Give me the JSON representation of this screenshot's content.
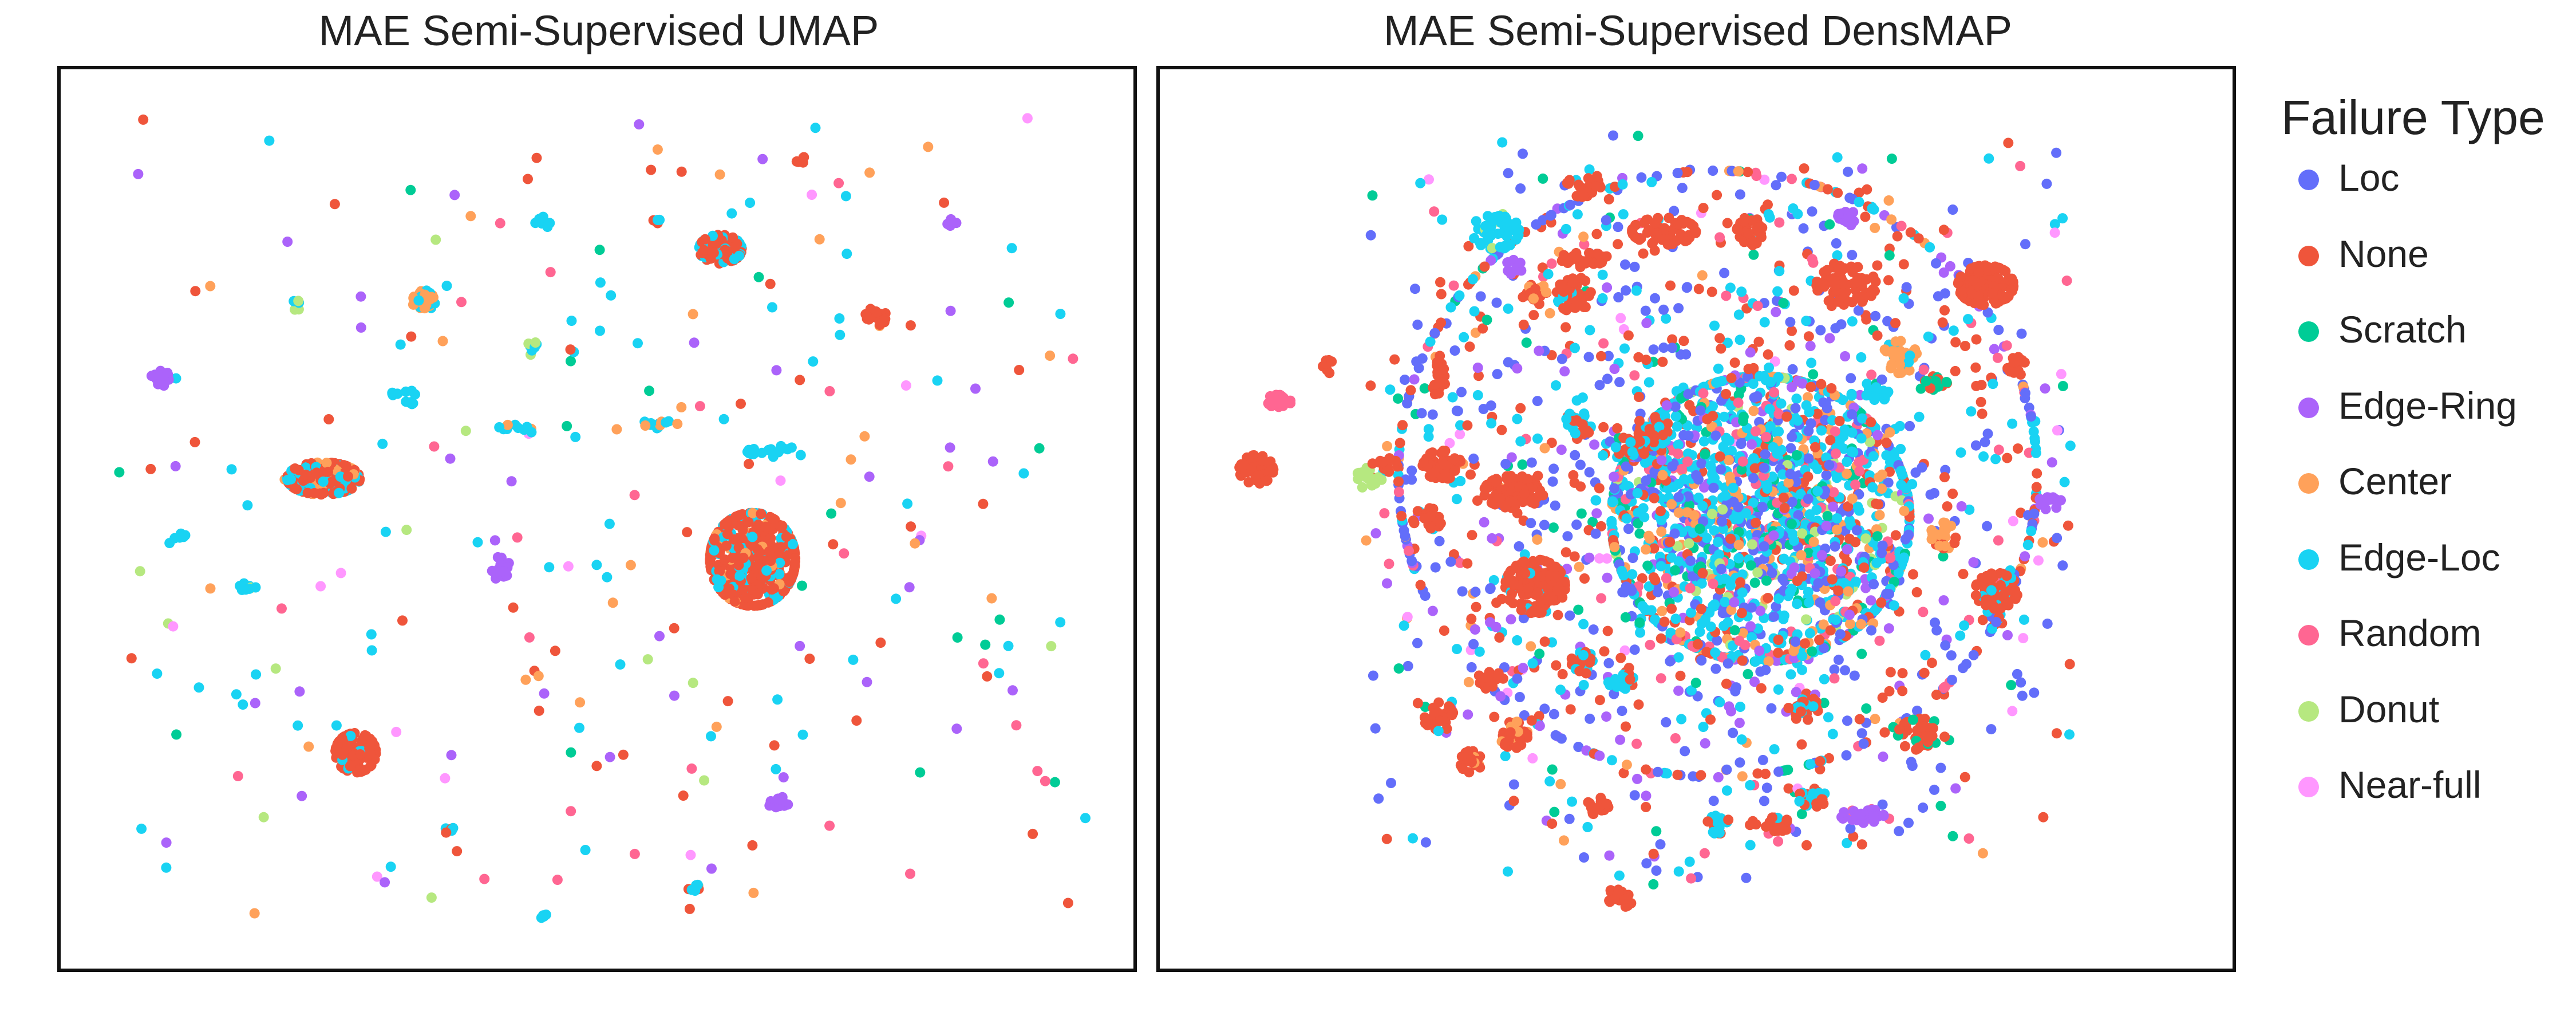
{
  "chart_data": [
    {
      "type": "scatter",
      "title": "MAE Semi-Supervised UMAP",
      "grid": false,
      "legend": "right",
      "clusters": [
        {
          "cx": 0.645,
          "cy": 0.545,
          "rx": 0.04,
          "ry": 0.052,
          "n": 480,
          "mix": {
            "None": 0.78,
            "Edge-Loc": 0.16,
            "Center": 0.06
          }
        },
        {
          "cx": 0.245,
          "cy": 0.455,
          "rx": 0.034,
          "ry": 0.018,
          "n": 210,
          "mix": {
            "None": 0.55,
            "Edge-Loc": 0.32,
            "Center": 0.13
          }
        },
        {
          "cx": 0.275,
          "cy": 0.76,
          "rx": 0.019,
          "ry": 0.022,
          "n": 120,
          "mix": {
            "None": 0.94,
            "Edge-Loc": 0.06
          }
        },
        {
          "cx": 0.615,
          "cy": 0.2,
          "rx": 0.02,
          "ry": 0.016,
          "n": 90,
          "mix": {
            "None": 0.75,
            "Edge-Loc": 0.25
          }
        },
        {
          "cx": 0.34,
          "cy": 0.258,
          "rx": 0.012,
          "ry": 0.012,
          "n": 32,
          "mix": {
            "Center": 0.7,
            "Edge-Loc": 0.3
          }
        },
        {
          "cx": 0.76,
          "cy": 0.275,
          "rx": 0.01,
          "ry": 0.01,
          "n": 22,
          "mix": {
            "None": 1.0
          }
        },
        {
          "cx": 0.092,
          "cy": 0.343,
          "rx": 0.009,
          "ry": 0.01,
          "n": 16,
          "mix": {
            "Edge-Ring": 0.9,
            "Donut": 0.1
          }
        },
        {
          "cx": 0.41,
          "cy": 0.555,
          "rx": 0.009,
          "ry": 0.013,
          "n": 16,
          "mix": {
            "Edge-Ring": 1.0
          }
        },
        {
          "cx": 0.67,
          "cy": 0.815,
          "rx": 0.011,
          "ry": 0.007,
          "n": 14,
          "mix": {
            "Edge-Ring": 1.0
          }
        },
        {
          "cx": 0.112,
          "cy": 0.52,
          "rx": 0.006,
          "ry": 0.005,
          "n": 8,
          "mix": {
            "Edge-Loc": 1.0
          }
        },
        {
          "cx": 0.175,
          "cy": 0.575,
          "rx": 0.008,
          "ry": 0.006,
          "n": 10,
          "mix": {
            "Edge-Loc": 0.8,
            "Donut": 0.2
          }
        },
        {
          "cx": 0.44,
          "cy": 0.31,
          "rx": 0.005,
          "ry": 0.008,
          "n": 8,
          "mix": {
            "Donut": 0.5,
            "Edge-Loc": 0.5
          }
        },
        {
          "cx": 0.325,
          "cy": 0.365,
          "rx": 0.006,
          "ry": 0.008,
          "n": 8,
          "mix": {
            "Edge-Loc": 1.0
          }
        },
        {
          "cx": 0.22,
          "cy": 0.26,
          "rx": 0.004,
          "ry": 0.008,
          "n": 7,
          "mix": {
            "Edge-Loc": 0.6,
            "Donut": 0.4
          }
        },
        {
          "cx": 0.67,
          "cy": 0.425,
          "rx": 0.03,
          "ry": 0.006,
          "n": 16,
          "mix": {
            "Edge-Loc": 1.0
          }
        },
        {
          "cx": 0.56,
          "cy": 0.395,
          "rx": 0.02,
          "ry": 0.005,
          "n": 12,
          "mix": {
            "Edge-Loc": 0.7,
            "Center": 0.3
          }
        },
        {
          "cx": 0.425,
          "cy": 0.4,
          "rx": 0.02,
          "ry": 0.005,
          "n": 10,
          "mix": {
            "Edge-Loc": 0.6,
            "Center": 0.4
          }
        },
        {
          "cx": 0.45,
          "cy": 0.17,
          "rx": 0.008,
          "ry": 0.006,
          "n": 8,
          "mix": {
            "Edge-Loc": 0.7,
            "Center": 0.3
          }
        },
        {
          "cx": 0.69,
          "cy": 0.1,
          "rx": 0.005,
          "ry": 0.004,
          "n": 5,
          "mix": {
            "None": 1.0
          }
        },
        {
          "cx": 0.36,
          "cy": 0.845,
          "rx": 0.006,
          "ry": 0.006,
          "n": 6,
          "mix": {
            "Edge-Loc": 0.6,
            "None": 0.4
          }
        },
        {
          "cx": 0.59,
          "cy": 0.91,
          "rx": 0.005,
          "ry": 0.005,
          "n": 6,
          "mix": {
            "Edge-Loc": 0.6,
            "None": 0.4
          }
        },
        {
          "cx": 0.45,
          "cy": 0.94,
          "rx": 0.004,
          "ry": 0.004,
          "n": 4,
          "mix": {
            "Edge-Loc": 1.0
          }
        },
        {
          "cx": 0.556,
          "cy": 0.17,
          "rx": 0.004,
          "ry": 0.004,
          "n": 4,
          "mix": {
            "None": 0.5,
            "Edge-Loc": 0.5
          }
        },
        {
          "cx": 0.83,
          "cy": 0.17,
          "rx": 0.005,
          "ry": 0.004,
          "n": 5,
          "mix": {
            "Edge-Ring": 1.0
          }
        },
        {
          "cx": 0.31,
          "cy": 0.36,
          "rx": 0.005,
          "ry": 0.004,
          "n": 5,
          "mix": {
            "Edge-Loc": 1.0
          }
        }
      ],
      "background_points": 300,
      "background_mix": {
        "Edge-Loc": 0.28,
        "None": 0.2,
        "Edge-Ring": 0.16,
        "Center": 0.12,
        "Scratch": 0.07,
        "Random": 0.07,
        "Donut": 0.05,
        "Near-full": 0.05
      }
    },
    {
      "type": "scatter",
      "title": "MAE Semi-Supervised DensMAP",
      "grid": false,
      "legend": "right",
      "clusters": [
        {
          "cx": 0.56,
          "cy": 0.5,
          "rx": 0.14,
          "ry": 0.16,
          "n": 1300,
          "mix": {
            "Edge-Loc": 0.42,
            "Loc": 0.15,
            "Scratch": 0.1,
            "Center": 0.1,
            "None": 0.08,
            "Random": 0.08,
            "Donut": 0.04,
            "Edge-Ring": 0.03
          }
        },
        {
          "cx": 0.52,
          "cy": 0.45,
          "rx": 0.3,
          "ry": 0.34,
          "n": 900,
          "mix": {
            "Loc": 0.3,
            "None": 0.24,
            "Edge-Loc": 0.22,
            "Edge-Ring": 0.08,
            "Random": 0.06,
            "Center": 0.05,
            "Scratch": 0.05
          }
        },
        {
          "cx": 0.35,
          "cy": 0.575,
          "rx": 0.028,
          "ry": 0.03,
          "n": 150,
          "mix": {
            "None": 0.94,
            "Edge-Loc": 0.06
          }
        },
        {
          "cx": 0.77,
          "cy": 0.24,
          "rx": 0.026,
          "ry": 0.022,
          "n": 120,
          "mix": {
            "None": 1.0
          }
        },
        {
          "cx": 0.78,
          "cy": 0.58,
          "rx": 0.02,
          "ry": 0.02,
          "n": 70,
          "mix": {
            "None": 0.85,
            "Edge-Loc": 0.15
          }
        },
        {
          "cx": 0.33,
          "cy": 0.47,
          "rx": 0.028,
          "ry": 0.018,
          "n": 90,
          "mix": {
            "None": 1.0
          }
        },
        {
          "cx": 0.263,
          "cy": 0.44,
          "rx": 0.018,
          "ry": 0.016,
          "n": 50,
          "mix": {
            "None": 1.0
          }
        },
        {
          "cx": 0.64,
          "cy": 0.24,
          "rx": 0.028,
          "ry": 0.022,
          "n": 70,
          "mix": {
            "None": 1.0
          }
        },
        {
          "cx": 0.47,
          "cy": 0.18,
          "rx": 0.03,
          "ry": 0.015,
          "n": 60,
          "mix": {
            "None": 1.0
          }
        },
        {
          "cx": 0.55,
          "cy": 0.18,
          "rx": 0.012,
          "ry": 0.016,
          "n": 30,
          "mix": {
            "None": 1.0
          }
        },
        {
          "cx": 0.46,
          "cy": 0.4,
          "rx": 0.014,
          "ry": 0.024,
          "n": 40,
          "mix": {
            "None": 0.7,
            "Edge-Loc": 0.3
          }
        },
        {
          "cx": 0.386,
          "cy": 0.25,
          "rx": 0.016,
          "ry": 0.02,
          "n": 40,
          "mix": {
            "None": 0.9,
            "Edge-Loc": 0.1
          }
        },
        {
          "cx": 0.39,
          "cy": 0.395,
          "rx": 0.012,
          "ry": 0.016,
          "n": 30,
          "mix": {
            "Edge-Loc": 0.6,
            "None": 0.4
          }
        },
        {
          "cx": 0.395,
          "cy": 0.212,
          "rx": 0.025,
          "ry": 0.008,
          "n": 30,
          "mix": {
            "None": 1.0
          }
        },
        {
          "cx": 0.09,
          "cy": 0.445,
          "rx": 0.016,
          "ry": 0.016,
          "n": 40,
          "mix": {
            "None": 1.0
          }
        },
        {
          "cx": 0.313,
          "cy": 0.18,
          "rx": 0.022,
          "ry": 0.02,
          "n": 50,
          "mix": {
            "Edge-Loc": 0.9,
            "Donut": 0.1
          }
        },
        {
          "cx": 0.35,
          "cy": 0.25,
          "rx": 0.012,
          "ry": 0.012,
          "n": 25,
          "mix": {
            "None": 0.8,
            "Center": 0.2
          }
        },
        {
          "cx": 0.26,
          "cy": 0.345,
          "rx": 0.006,
          "ry": 0.02,
          "n": 20,
          "mix": {
            "None": 1.0
          }
        },
        {
          "cx": 0.69,
          "cy": 0.32,
          "rx": 0.016,
          "ry": 0.018,
          "n": 40,
          "mix": {
            "Center": 0.75,
            "Edge-Loc": 0.25
          }
        },
        {
          "cx": 0.73,
          "cy": 0.52,
          "rx": 0.012,
          "ry": 0.016,
          "n": 30,
          "mix": {
            "Center": 0.8,
            "None": 0.2
          }
        },
        {
          "cx": 0.72,
          "cy": 0.35,
          "rx": 0.014,
          "ry": 0.008,
          "n": 20,
          "mix": {
            "Scratch": 0.6,
            "None": 0.4
          }
        },
        {
          "cx": 0.67,
          "cy": 0.36,
          "rx": 0.012,
          "ry": 0.008,
          "n": 15,
          "mix": {
            "Edge-Loc": 1.0
          }
        },
        {
          "cx": 0.44,
          "cy": 0.42,
          "rx": 0.015,
          "ry": 0.012,
          "n": 25,
          "mix": {
            "None": 0.6,
            "Edge-Loc": 0.4
          }
        },
        {
          "cx": 0.26,
          "cy": 0.72,
          "rx": 0.014,
          "ry": 0.016,
          "n": 30,
          "mix": {
            "None": 0.9,
            "Edge-Loc": 0.1
          }
        },
        {
          "cx": 0.33,
          "cy": 0.74,
          "rx": 0.013,
          "ry": 0.015,
          "n": 30,
          "mix": {
            "None": 0.7,
            "Center": 0.3
          }
        },
        {
          "cx": 0.41,
          "cy": 0.82,
          "rx": 0.01,
          "ry": 0.01,
          "n": 18,
          "mix": {
            "None": 1.0
          }
        },
        {
          "cx": 0.6,
          "cy": 0.71,
          "rx": 0.014,
          "ry": 0.014,
          "n": 30,
          "mix": {
            "None": 0.8,
            "Edge-Loc": 0.2
          }
        },
        {
          "cx": 0.71,
          "cy": 0.74,
          "rx": 0.022,
          "ry": 0.018,
          "n": 40,
          "mix": {
            "None": 0.85,
            "Scratch": 0.15
          }
        },
        {
          "cx": 0.655,
          "cy": 0.83,
          "rx": 0.02,
          "ry": 0.008,
          "n": 30,
          "mix": {
            "Edge-Ring": 0.7,
            "Random": 0.3
          }
        },
        {
          "cx": 0.61,
          "cy": 0.81,
          "rx": 0.015,
          "ry": 0.01,
          "n": 25,
          "mix": {
            "Edge-Loc": 0.6,
            "None": 0.4
          }
        },
        {
          "cx": 0.43,
          "cy": 0.68,
          "rx": 0.012,
          "ry": 0.01,
          "n": 20,
          "mix": {
            "Edge-Loc": 0.8,
            "None": 0.2
          }
        },
        {
          "cx": 0.29,
          "cy": 0.77,
          "rx": 0.01,
          "ry": 0.012,
          "n": 20,
          "mix": {
            "None": 0.7,
            "Center": 0.3
          }
        },
        {
          "cx": 0.43,
          "cy": 0.92,
          "rx": 0.012,
          "ry": 0.012,
          "n": 20,
          "mix": {
            "None": 1.0
          }
        },
        {
          "cx": 0.52,
          "cy": 0.84,
          "rx": 0.012,
          "ry": 0.01,
          "n": 20,
          "mix": {
            "Edge-Loc": 0.7,
            "None": 0.3
          }
        },
        {
          "cx": 0.31,
          "cy": 0.68,
          "rx": 0.012,
          "ry": 0.01,
          "n": 20,
          "mix": {
            "None": 1.0
          }
        },
        {
          "cx": 0.395,
          "cy": 0.66,
          "rx": 0.012,
          "ry": 0.012,
          "n": 20,
          "mix": {
            "None": 0.6,
            "Edge-Loc": 0.4
          }
        },
        {
          "cx": 0.395,
          "cy": 0.13,
          "rx": 0.016,
          "ry": 0.012,
          "n": 25,
          "mix": {
            "None": 1.0
          }
        },
        {
          "cx": 0.57,
          "cy": 0.84,
          "rx": 0.02,
          "ry": 0.008,
          "n": 25,
          "mix": {
            "None": 0.8,
            "Edge-Loc": 0.2
          }
        },
        {
          "cx": 0.8,
          "cy": 0.33,
          "rx": 0.01,
          "ry": 0.01,
          "n": 15,
          "mix": {
            "None": 1.0
          }
        },
        {
          "cx": 0.25,
          "cy": 0.5,
          "rx": 0.014,
          "ry": 0.012,
          "n": 25,
          "mix": {
            "None": 1.0
          }
        },
        {
          "cx": 0.11,
          "cy": 0.37,
          "rx": 0.012,
          "ry": 0.008,
          "n": 15,
          "mix": {
            "Random": 1.0
          }
        },
        {
          "cx": 0.195,
          "cy": 0.455,
          "rx": 0.012,
          "ry": 0.012,
          "n": 15,
          "mix": {
            "Donut": 1.0
          }
        },
        {
          "cx": 0.64,
          "cy": 0.165,
          "rx": 0.008,
          "ry": 0.01,
          "n": 12,
          "mix": {
            "Edge-Ring": 1.0
          }
        },
        {
          "cx": 0.33,
          "cy": 0.22,
          "rx": 0.008,
          "ry": 0.008,
          "n": 10,
          "mix": {
            "Edge-Ring": 1.0
          }
        },
        {
          "cx": 0.83,
          "cy": 0.48,
          "rx": 0.01,
          "ry": 0.01,
          "n": 12,
          "mix": {
            "Edge-Ring": 1.0
          }
        },
        {
          "cx": 0.21,
          "cy": 0.44,
          "rx": 0.012,
          "ry": 0.008,
          "n": 10,
          "mix": {
            "None": 1.0
          }
        },
        {
          "cx": 0.16,
          "cy": 0.33,
          "rx": 0.008,
          "ry": 0.008,
          "n": 8,
          "mix": {
            "None": 1.0
          }
        }
      ],
      "background_points": 650,
      "background_mix": {
        "Loc": 0.28,
        "None": 0.22,
        "Edge-Loc": 0.16,
        "Edge-Ring": 0.1,
        "Random": 0.08,
        "Scratch": 0.06,
        "Center": 0.05,
        "Near-full": 0.05
      }
    }
  ],
  "titles": {
    "left": "MAE Semi-Supervised UMAP",
    "right": "MAE Semi-Supervised DensMAP"
  },
  "legend": {
    "title": "Failure Type",
    "items": [
      {
        "label": "Loc",
        "color": "#636efa"
      },
      {
        "label": "None",
        "color": "#ef553b"
      },
      {
        "label": "Scratch",
        "color": "#00cc96"
      },
      {
        "label": "Edge-Ring",
        "color": "#ab63fa"
      },
      {
        "label": "Center",
        "color": "#ffa15a"
      },
      {
        "label": "Edge-Loc",
        "color": "#19d3f3"
      },
      {
        "label": "Random",
        "color": "#ff6692"
      },
      {
        "label": "Donut",
        "color": "#b6e880"
      },
      {
        "label": "Near-full",
        "color": "#ff97ff"
      }
    ]
  }
}
